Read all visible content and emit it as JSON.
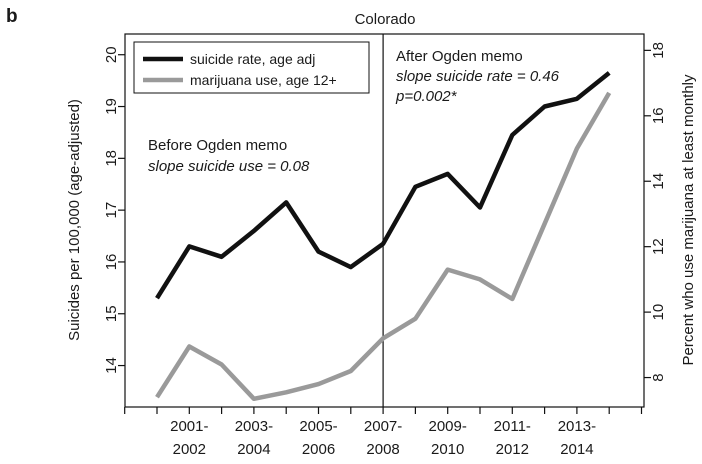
{
  "panel_letter": "b",
  "chart_data": {
    "type": "line",
    "title": "Colorado",
    "ylabel_left": "Suicides per 100,000 (age-adjusted)",
    "ylabel_right": "Percent who use marijuana at least monthly",
    "x_tick_labels": [
      [
        "2001-",
        "2002"
      ],
      [
        "2003-",
        "2004"
      ],
      [
        "2005-",
        "2006"
      ],
      [
        "2007-",
        "2008"
      ],
      [
        "2009-",
        "2010"
      ],
      [
        "2011-",
        "2012"
      ],
      [
        "2013-",
        "2014"
      ]
    ],
    "y_left_ticks": [
      14,
      15,
      16,
      17,
      18,
      19,
      20
    ],
    "y_left_lim": [
      13.2,
      20.4
    ],
    "y_right_ticks": [
      8,
      10,
      12,
      14,
      16,
      18
    ],
    "y_right_lim": [
      7.1,
      18.5
    ],
    "x": [
      2000,
      2001,
      2002,
      2003,
      2004,
      2005,
      2006,
      2007,
      2008,
      2009,
      2010,
      2011,
      2012,
      2013,
      2014
    ],
    "series": [
      {
        "name": "suicide rate, age adj",
        "axis": "left",
        "color": "#111111",
        "values": [
          15.3,
          16.3,
          16.1,
          16.6,
          17.15,
          16.2,
          15.9,
          16.35,
          17.45,
          17.7,
          17.05,
          18.45,
          19.0,
          19.15,
          19.65
        ]
      },
      {
        "name": "marijuana use, age 12+",
        "axis": "right",
        "color": "#9a9a9a",
        "values": [
          7.4,
          8.95,
          8.4,
          7.35,
          7.55,
          7.8,
          8.2,
          9.2,
          9.8,
          11.3,
          11.0,
          10.4,
          12.7,
          15.0,
          16.7
        ]
      }
    ],
    "ogden_memo_x": 2007,
    "annotations": {
      "before_title": "Before Ogden memo",
      "before_slope": "slope suicide use = 0.08",
      "after_title": "After Ogden memo",
      "after_slope": "slope suicide rate = 0.46",
      "after_p": "p=0.002*"
    },
    "legend_placement": "top-left",
    "grid": false
  }
}
